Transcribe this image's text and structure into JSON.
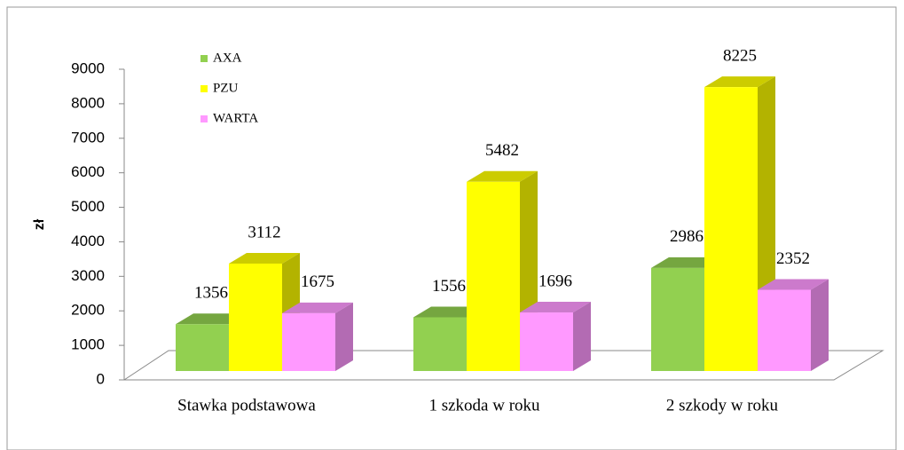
{
  "chart_data": {
    "type": "bar3d",
    "y_label": "zł",
    "categories": [
      "Stawka podstawowa",
      "1 szkoda w roku",
      "2 szkody w roku"
    ],
    "series": [
      {
        "name": "AXA",
        "color": "#92d050",
        "values": [
          1356,
          1556,
          2986
        ]
      },
      {
        "name": "PZU",
        "color": "#ffff00",
        "values": [
          3112,
          5482,
          8225
        ]
      },
      {
        "name": "WARTA",
        "color": "#ff99ff",
        "values": [
          1675,
          1696,
          2352
        ]
      }
    ],
    "ylim": [
      0,
      9000
    ],
    "yticks": [
      0,
      1000,
      2000,
      3000,
      4000,
      5000,
      6000,
      7000,
      8000,
      9000
    ],
    "grid": false,
    "legend": "top-left"
  }
}
